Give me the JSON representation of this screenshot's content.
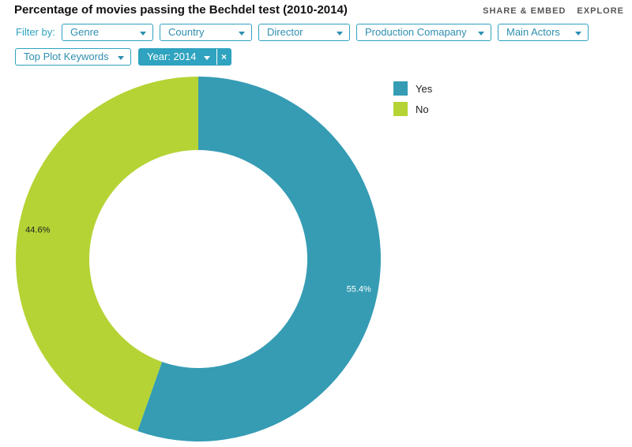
{
  "header": {
    "title": "Percentage of movies passing the Bechdel test (2010-2014)",
    "share_label": "SHARE & EMBED",
    "explore_label": "EXPLORE"
  },
  "filters": {
    "label": "Filter by:",
    "dropdowns": [
      {
        "label": "Genre"
      },
      {
        "label": "Country"
      },
      {
        "label": "Director"
      },
      {
        "label": "Production Comapany"
      },
      {
        "label": "Main Actors"
      },
      {
        "label": "Top Plot Keywords"
      }
    ],
    "active": {
      "label": "Year: 2014",
      "clear_icon": "×"
    }
  },
  "colors": {
    "yes": "#359cb4",
    "no": "#b5d334"
  },
  "chart_data": {
    "type": "pie",
    "donut": true,
    "title": "Percentage of movies passing the Bechdel test (2010-2014)",
    "legend_position": "top-right",
    "slices": [
      {
        "label": "Yes",
        "value": 55.4,
        "display": "55.4%",
        "color": "#359cb4"
      },
      {
        "label": "No",
        "value": 44.6,
        "display": "44.6%",
        "color": "#b5d334"
      }
    ]
  }
}
